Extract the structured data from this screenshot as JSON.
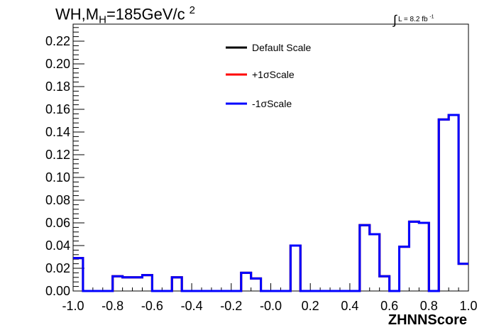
{
  "title": {
    "process": "WH,M",
    "subscript": "H",
    "mass": "=185GeV/c",
    "superscript": "2"
  },
  "luminosity": {
    "label": "L = 8.2 fb",
    "exponent": "-1"
  },
  "chart_data": {
    "type": "line",
    "xlabel": "ZHNNScore",
    "ylabel": "",
    "xlim": [
      -1.0,
      1.0
    ],
    "ylim": [
      0.0,
      0.235
    ],
    "x_ticks": [
      "-1.0",
      "-0.8",
      "-0.6",
      "-0.4",
      "-0.2",
      "-0.0",
      "0.2",
      "0.4",
      "0.6",
      "0.8",
      "1.0"
    ],
    "y_ticks": [
      "0.00",
      "0.02",
      "0.04",
      "0.06",
      "0.08",
      "0.10",
      "0.12",
      "0.14",
      "0.16",
      "0.18",
      "0.20",
      "0.22"
    ],
    "legend_position": "top-center",
    "bin_edges": [
      -1.0,
      -0.95,
      -0.9,
      -0.85,
      -0.8,
      -0.75,
      -0.7,
      -0.65,
      -0.6,
      -0.55,
      -0.5,
      -0.45,
      -0.4,
      -0.35,
      -0.3,
      -0.25,
      -0.2,
      -0.15,
      -0.1,
      -0.05,
      0.0,
      0.05,
      0.1,
      0.15,
      0.2,
      0.25,
      0.3,
      0.35,
      0.4,
      0.45,
      0.5,
      0.55,
      0.6,
      0.65,
      0.7,
      0.75,
      0.8,
      0.85,
      0.9,
      0.95,
      1.0
    ],
    "series": [
      {
        "name": "Default Scale",
        "color": "#000000",
        "values": [
          0.029,
          0.0,
          0.0,
          0.0,
          0.013,
          0.012,
          0.012,
          0.014,
          0.0,
          0.0,
          0.012,
          0.0,
          0.0,
          0.0,
          0.0,
          0.0,
          0.0,
          0.016,
          0.011,
          0.0,
          0.0,
          0.0,
          0.04,
          0.0,
          0.0,
          0.0,
          0.0,
          0.0,
          0.0,
          0.058,
          0.05,
          0.013,
          0.0,
          0.039,
          0.061,
          0.06,
          0.0,
          0.151,
          0.155,
          0.024
        ]
      },
      {
        "name": "+1σScale",
        "color": "#ff0000",
        "values": [
          0.029,
          0.0,
          0.0,
          0.0,
          0.013,
          0.012,
          0.012,
          0.014,
          0.0,
          0.0,
          0.012,
          0.0,
          0.0,
          0.0,
          0.0,
          0.0,
          0.0,
          0.016,
          0.011,
          0.0,
          0.0,
          0.0,
          0.04,
          0.0,
          0.0,
          0.0,
          0.0,
          0.0,
          0.0,
          0.058,
          0.05,
          0.013,
          0.0,
          0.039,
          0.061,
          0.06,
          0.0,
          0.151,
          0.155,
          0.024
        ]
      },
      {
        "name": "-1σScale",
        "color": "#0000ff",
        "values": [
          0.029,
          0.0,
          0.0,
          0.0,
          0.013,
          0.012,
          0.012,
          0.014,
          0.0,
          0.0,
          0.012,
          0.0,
          0.0,
          0.0,
          0.0,
          0.0,
          0.0,
          0.016,
          0.011,
          0.0,
          0.0,
          0.0,
          0.04,
          0.0,
          0.0,
          0.0,
          0.0,
          0.0,
          0.0,
          0.058,
          0.05,
          0.013,
          0.0,
          0.039,
          0.061,
          0.06,
          0.0,
          0.151,
          0.155,
          0.024
        ]
      }
    ]
  }
}
